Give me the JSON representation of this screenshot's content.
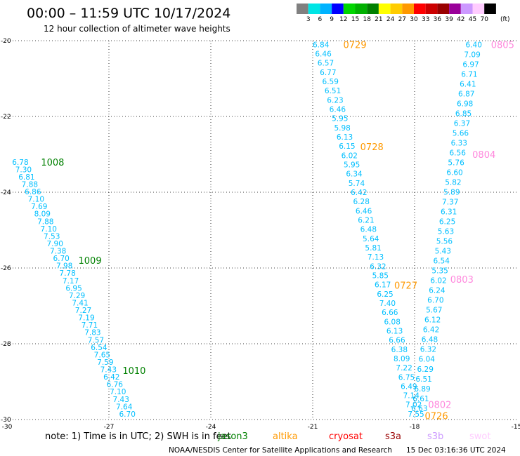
{
  "header": {
    "title": "00:00 – 11:59 UTC 10/17/2024",
    "subtitle": "12 hour collection of altimeter wave heights"
  },
  "color_scale": {
    "unit": "(ft)",
    "ticks": [
      "3",
      "6",
      "9",
      "12",
      "15",
      "18",
      "21",
      "24",
      "27",
      "30",
      "33",
      "36",
      "39",
      "42",
      "45",
      "70"
    ],
    "colors": [
      "#808080",
      "#00e5e5",
      "#00b3ff",
      "#0000ff",
      "#00d600",
      "#00b000",
      "#008000",
      "#ffff00",
      "#ffcc00",
      "#ff9900",
      "#ff0000",
      "#cc0000",
      "#990000",
      "#990099",
      "#cc99ff",
      "#ffccff",
      "#000000"
    ]
  },
  "footer": {
    "note": "note:  1) Time is in UTC;  2) SWH is in feet",
    "satellites": [
      {
        "name": "jason3",
        "color": "#008000"
      },
      {
        "name": "altika",
        "color": "#ff9900"
      },
      {
        "name": "cryosat",
        "color": "#ff0000"
      },
      {
        "name": "s3a",
        "color": "#990000"
      },
      {
        "name": "s3b",
        "color": "#cc99ff"
      },
      {
        "name": "swot",
        "color": "#ffccff"
      }
    ],
    "credit": "NOAA/NESDIS Center for Satellite Applications and Research",
    "timestamp": "15 Dec 03:16:36 UTC 2024"
  },
  "chart_data": {
    "type": "scatter",
    "title": "00:00 – 11:59 UTC 10/17/2024",
    "subtitle": "12 hour collection of altimeter wave heights",
    "xlabel": "",
    "ylabel": "",
    "xlim": [
      -30,
      -15
    ],
    "ylim": [
      -30,
      -20
    ],
    "xticks": [
      -30,
      -27,
      -24,
      -21,
      -18,
      -15
    ],
    "yticks": [
      -20,
      -22,
      -24,
      -26,
      -28,
      -30
    ],
    "xtick_labels": [
      "-30",
      "-27",
      "-24",
      "-21",
      "-18",
      "-15"
    ],
    "ytick_labels": [
      "-20",
      "-22",
      "-24",
      "-26",
      "-28",
      "-30"
    ],
    "grid": true,
    "value_color": "#00bfff",
    "tracks": [
      {
        "name": "jason3 track",
        "color": "#00bfff",
        "start": [
          -29.85,
          -23.2
        ],
        "end": [
          -26.7,
          -29.85
        ],
        "values": [
          "6.78",
          "7.30",
          "6.81",
          "7.88",
          "6.86",
          "7.10",
          "7.69",
          "8.09",
          "7.88",
          "7.10",
          "7.53",
          "7.90",
          "7.38",
          "6.70",
          "7.98",
          "7.78",
          "7.17",
          "6.95",
          "7.29",
          "7.41",
          "7.27",
          "7.19",
          "7.71",
          "7.83",
          "7.57",
          "6.54",
          "7.65",
          "7.59",
          "7.43",
          "6.42",
          "6.76",
          "7.10",
          "7.43",
          "7.64",
          "6.70"
        ],
        "labels": [
          {
            "text": "1008",
            "x": -29.0,
            "y": -23.2
          },
          {
            "text": "1009",
            "x": -27.9,
            "y": -25.8
          },
          {
            "text": "1010",
            "x": -26.6,
            "y": -28.7
          }
        ]
      },
      {
        "name": "altika track",
        "color": "#00bfff",
        "start": [
          -21.0,
          -20.1
        ],
        "end": [
          -18.2,
          -29.85
        ],
        "values": [
          "6.84",
          "6.46",
          "6.57",
          "6.77",
          "6.59",
          "6.51",
          "6.23",
          "6.46",
          "5.95",
          "5.98",
          "6.13",
          "6.15",
          "6.02",
          "5.95",
          "6.34",
          "5.74",
          "6.42",
          "6.28",
          "6.46",
          "6.21",
          "6.48",
          "5.64",
          "5.81",
          "7.13",
          "6.32",
          "5.85",
          "6.17",
          "6.25",
          "7.40",
          "6.66",
          "6.08",
          "6.13",
          "6.66",
          "6.38",
          "8.09",
          "7.22",
          "6.75",
          "6.49",
          "7.14",
          "7.02",
          "7.55"
        ],
        "labels": [
          {
            "text": "0729",
            "x": -20.1,
            "y": -20.1
          },
          {
            "text": "0728",
            "x": -19.6,
            "y": -22.8
          },
          {
            "text": "0727",
            "x": -18.6,
            "y": -26.45
          },
          {
            "text": "0726",
            "x": -17.7,
            "y": -29.9
          }
        ]
      },
      {
        "name": "swot track",
        "color": "#00bfff",
        "start": [
          -16.5,
          -20.1
        ],
        "end": [
          -18.1,
          -29.7
        ],
        "values": [
          "6.40",
          "7.09",
          "6.97",
          "6.71",
          "6.41",
          "6.87",
          "6.98",
          "6.85",
          "6.37",
          "5.66",
          "6.33",
          "6.56",
          "5.76",
          "6.60",
          "5.82",
          "5.89",
          "7.37",
          "6.31",
          "6.25",
          "5.63",
          "5.56",
          "5.43",
          "6.54",
          "5.35",
          "6.02",
          "6.24",
          "6.70",
          "5.67",
          "6.12",
          "6.42",
          "6.48",
          "6.32",
          "6.04",
          "6.29",
          "6.51",
          "6.89",
          "6.61",
          "6.63"
        ],
        "labels": [
          {
            "text": "0805",
            "x": -15.75,
            "y": -20.1
          },
          {
            "text": "0804",
            "x": -16.3,
            "y": -23.0
          },
          {
            "text": "0803",
            "x": -16.95,
            "y": -26.3
          },
          {
            "text": "0802",
            "x": -17.6,
            "y": -29.6
          }
        ]
      }
    ]
  }
}
